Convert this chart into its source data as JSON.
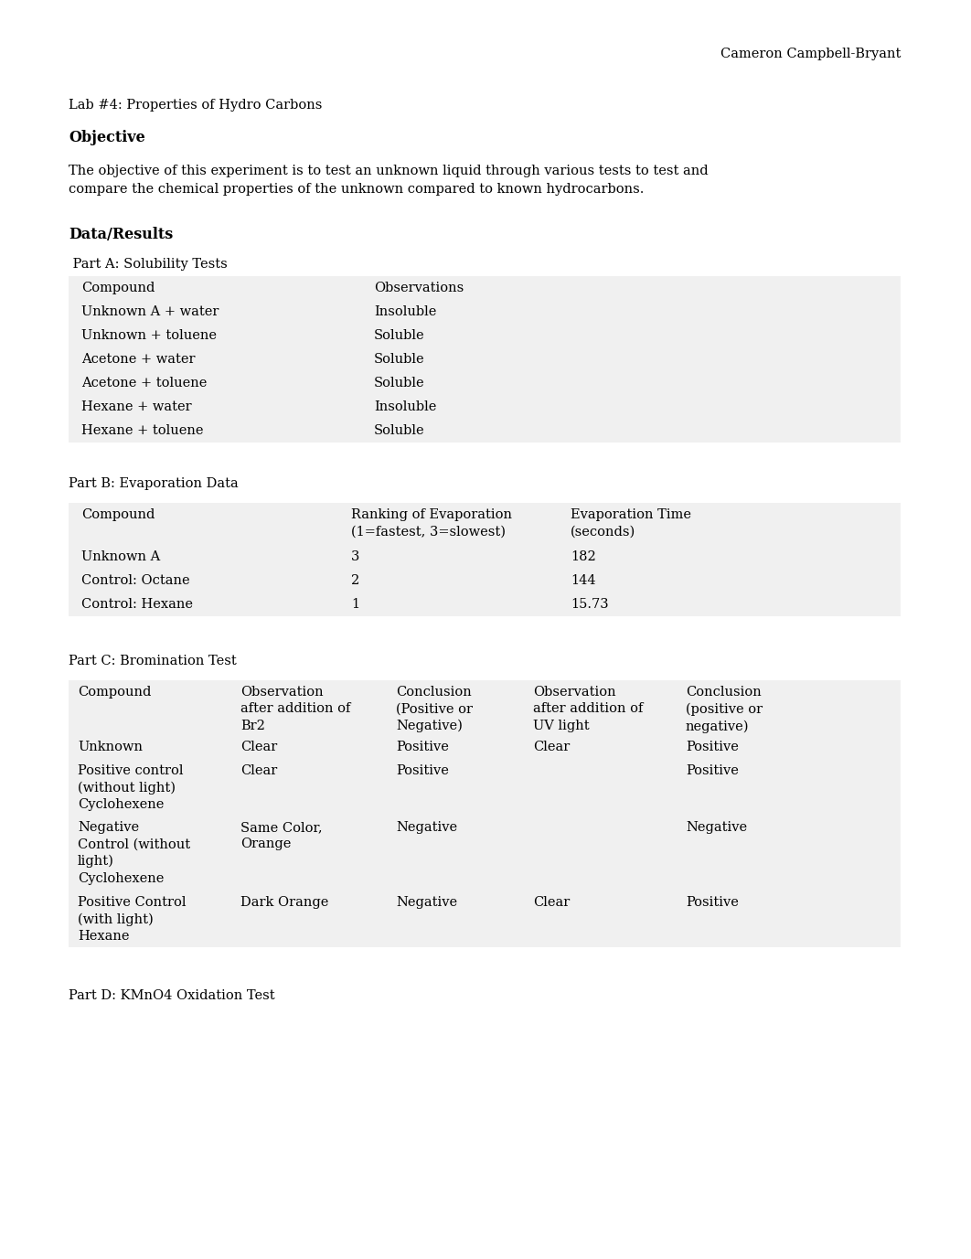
{
  "author": "Cameron Campbell-Bryant",
  "lab_title": "Lab #4: Properties of Hydro Carbons",
  "objective_heading": "Objective",
  "objective_text": "The objective of this experiment is to test an unknown liquid through various tests to test and\ncompare the chemical properties of the unknown compared to known hydrocarbons.",
  "data_results_heading": "Data/Results",
  "part_a_heading": " Part A: Solubility Tests",
  "part_a_headers": [
    "Compound",
    "Observations"
  ],
  "part_a_rows": [
    [
      "Unknown A + water",
      "Insoluble"
    ],
    [
      "Unknown + toluene",
      "Soluble"
    ],
    [
      "Acetone + water",
      "Soluble"
    ],
    [
      "Acetone + toluene",
      "Soluble"
    ],
    [
      "Hexane + water",
      "Insoluble"
    ],
    [
      "Hexane + toluene",
      "Soluble"
    ]
  ],
  "part_b_heading": "Part B: Evaporation Data",
  "part_b_headers": [
    "Compound",
    "Ranking of Evaporation\n(1=fastest, 3=slowest)",
    "Evaporation Time\n(seconds)"
  ],
  "part_b_rows": [
    [
      "Unknown A",
      "3",
      "182"
    ],
    [
      "Control: Octane",
      "2",
      "144"
    ],
    [
      "Control: Hexane",
      "1",
      "15.73"
    ]
  ],
  "part_c_heading": "Part C: Bromination Test",
  "part_c_headers": [
    "Compound",
    "Observation\nafter addition of\nBr2",
    "Conclusion\n(Positive or\nNegative)",
    "Observation\nafter addition of\nUV light",
    "Conclusion\n(positive or\nnegative)"
  ],
  "part_c_rows": [
    [
      "Unknown",
      "Clear",
      "Positive",
      "Clear",
      "Positive"
    ],
    [
      "Positive control\n(without light)\nCyclohexene",
      "Clear",
      "Positive",
      "",
      "Positive"
    ],
    [
      "Negative\nControl (without\nlight)\nCyclohexene",
      "Same Color,\nOrange",
      "Negative",
      "",
      "Negative"
    ],
    [
      "Positive Control\n(with light)\nHexane",
      "Dark Orange",
      "Negative",
      "Clear",
      "Positive"
    ]
  ],
  "part_d_heading": "Part D: KMnO4 Oxidation Test",
  "bg_color": "#ffffff",
  "table_bg": "#f0f0f0",
  "font_family": "DejaVu Serif",
  "font_size": 10.5,
  "figwidth": 10.62,
  "figheight": 13.77,
  "dpi": 100
}
